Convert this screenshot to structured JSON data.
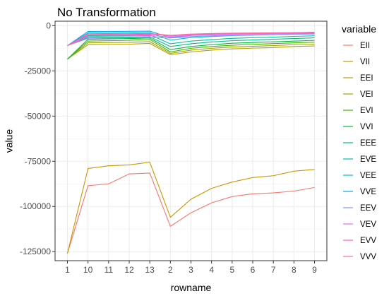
{
  "chart_data": {
    "type": "line",
    "title": "No Transformation",
    "xlabel": "rowname",
    "ylabel": "value",
    "legend_title": "variable",
    "legend_position": "right",
    "grid": true,
    "categories": [
      "1",
      "10",
      "11",
      "12",
      "13",
      "2",
      "3",
      "4",
      "5",
      "6",
      "7",
      "8",
      "9"
    ],
    "ylim": [
      -130000,
      2500
    ],
    "yticks": [
      0,
      -25000,
      -50000,
      -75000,
      -100000,
      -125000
    ],
    "ytick_labels": [
      "0",
      "-25000",
      "-50000",
      "-75000",
      "-100000",
      "-125000"
    ],
    "series": [
      {
        "name": "EII",
        "color": "#F8766D",
        "values": [
          -126000,
          -88500,
          -87500,
          -82000,
          -81500,
          -111000,
          -103500,
          -98000,
          -94500,
          -93000,
          -92500,
          -91500,
          -89500
        ]
      },
      {
        "name": "VII",
        "color": "#CD9600",
        "values": [
          -126000,
          -79000,
          -77500,
          -77000,
          -75500,
          -106000,
          -96000,
          -90000,
          -86500,
          -84000,
          -83000,
          -80500,
          -79500
        ]
      },
      {
        "name": "EEI",
        "color": "#B79F00",
        "values": [
          -18500,
          -10500,
          -10300,
          -10200,
          -9800,
          -16000,
          -14500,
          -13500,
          -12800,
          -12400,
          -12100,
          -11500,
          -11200
        ]
      },
      {
        "name": "VEI",
        "color": "#9DA700",
        "values": [
          -18500,
          -9500,
          -9300,
          -9200,
          -8800,
          -15300,
          -13500,
          -12500,
          -11800,
          -11400,
          -11000,
          -10500,
          -10200
        ]
      },
      {
        "name": "EVI",
        "color": "#49B500",
        "values": [
          -18500,
          -8500,
          -8300,
          -8100,
          -7600,
          -14500,
          -12500,
          -11500,
          -10800,
          -10300,
          -9900,
          -9500,
          -9100
        ]
      },
      {
        "name": "VVI",
        "color": "#00BA38",
        "values": [
          -18500,
          -7500,
          -7300,
          -7100,
          -6800,
          -13200,
          -11500,
          -10500,
          -9700,
          -9300,
          -8900,
          -8500,
          -8100
        ]
      },
      {
        "name": "EEE",
        "color": "#00BF7D",
        "values": [
          -11000,
          -6500,
          -6400,
          -6300,
          -6100,
          -11500,
          -10000,
          -9000,
          -8300,
          -7900,
          -7500,
          -7100,
          -6700
        ]
      },
      {
        "name": "EVE",
        "color": "#00C1A3",
        "values": [
          -11000,
          -5500,
          -5400,
          -5300,
          -5000,
          -10000,
          -8500,
          -7700,
          -7000,
          -6600,
          -6300,
          -5900,
          -5600
        ]
      },
      {
        "name": "VEE",
        "color": "#00BFC4",
        "values": [
          -11000,
          -4000,
          -4100,
          -4000,
          -3800,
          -8000,
          -6500,
          -6000,
          -5500,
          -5200,
          -5000,
          -4700,
          -4400
        ]
      },
      {
        "name": "VVE",
        "color": "#00A9FF",
        "values": [
          -11000,
          -3200,
          -3200,
          -3100,
          -3000,
          -6600,
          -5400,
          -5000,
          -4600,
          -4400,
          -4200,
          -3900,
          -3600
        ]
      },
      {
        "name": "EEV",
        "color": "#8494FF",
        "values": [
          -11000,
          -7000,
          -6800,
          -6700,
          -6500,
          -6800,
          -6000,
          -5600,
          -5300,
          -5100,
          -4900,
          -4700,
          -4600
        ]
      },
      {
        "name": "VEV",
        "color": "#ED68ED",
        "values": [
          -11000,
          -6000,
          -5800,
          -5700,
          -5500,
          -6200,
          -5300,
          -5000,
          -4700,
          -4600,
          -4400,
          -4300,
          -4200
        ]
      },
      {
        "name": "EVV",
        "color": "#FF61CC",
        "values": [
          -11000,
          -5000,
          -4900,
          -4800,
          -4600,
          -5700,
          -4900,
          -4600,
          -4400,
          -4300,
          -4200,
          -4100,
          -4000
        ]
      },
      {
        "name": "VVV",
        "color": "#FF68A1",
        "values": [
          -11000,
          -4500,
          -4500,
          -4400,
          -4300,
          -5300,
          -4600,
          -4300,
          -4100,
          -4000,
          -3900,
          -3800,
          -3700
        ]
      }
    ]
  }
}
